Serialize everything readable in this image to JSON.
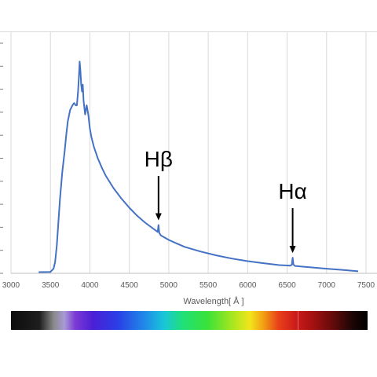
{
  "chart_data": {
    "type": "line",
    "title": "",
    "xlabel": "Wavelength[ Å ]",
    "ylabel": "",
    "xlim": [
      3000,
      7500
    ],
    "xticks": [
      3000,
      3500,
      4000,
      4500,
      5000,
      5500,
      6000,
      6500,
      7000,
      7500
    ],
    "ylim": [
      0,
      100
    ],
    "grid": "vertical",
    "color": "#4472C4",
    "series": [
      {
        "x": [
          3350,
          3500,
          3540,
          3560,
          3580,
          3600,
          3620,
          3650,
          3680,
          3700,
          3720,
          3750,
          3780,
          3800,
          3820,
          3835,
          3850,
          3860,
          3870,
          3880,
          3890,
          3900,
          3910,
          3920,
          3930,
          3940,
          3960,
          3980,
          4000,
          4020,
          4050,
          4100,
          4150,
          4200,
          4300,
          4400,
          4500,
          4600,
          4700,
          4800,
          4840,
          4860,
          4870,
          4880,
          4900,
          4950,
          5000,
          5100,
          5200,
          5400,
          5600,
          5800,
          6000,
          6200,
          6400,
          6500,
          6540,
          6560,
          6570,
          6580,
          6600,
          6800,
          7000,
          7200,
          7400
        ],
        "y": [
          0.5,
          0.6,
          2,
          5,
          12,
          22,
          32,
          44,
          53,
          60,
          66,
          71,
          73,
          74,
          73,
          73,
          79,
          85,
          92,
          88,
          82,
          79,
          82,
          75,
          72,
          69,
          73,
          69,
          63,
          59,
          55,
          50,
          46,
          42.5,
          37,
          32.5,
          28.5,
          25,
          22,
          19.5,
          18.5,
          18,
          21,
          17.5,
          16.5,
          15.5,
          14.5,
          13,
          11.5,
          9.5,
          7.8,
          6.4,
          5.3,
          4.4,
          3.6,
          3.4,
          3.3,
          3.8,
          6.8,
          3.8,
          3.2,
          2.6,
          2,
          1.5,
          0.9
        ]
      }
    ],
    "annotations": [
      {
        "text": "Hβ",
        "x": 4870
      },
      {
        "text": "Hα",
        "x": 6570
      }
    ]
  }
}
